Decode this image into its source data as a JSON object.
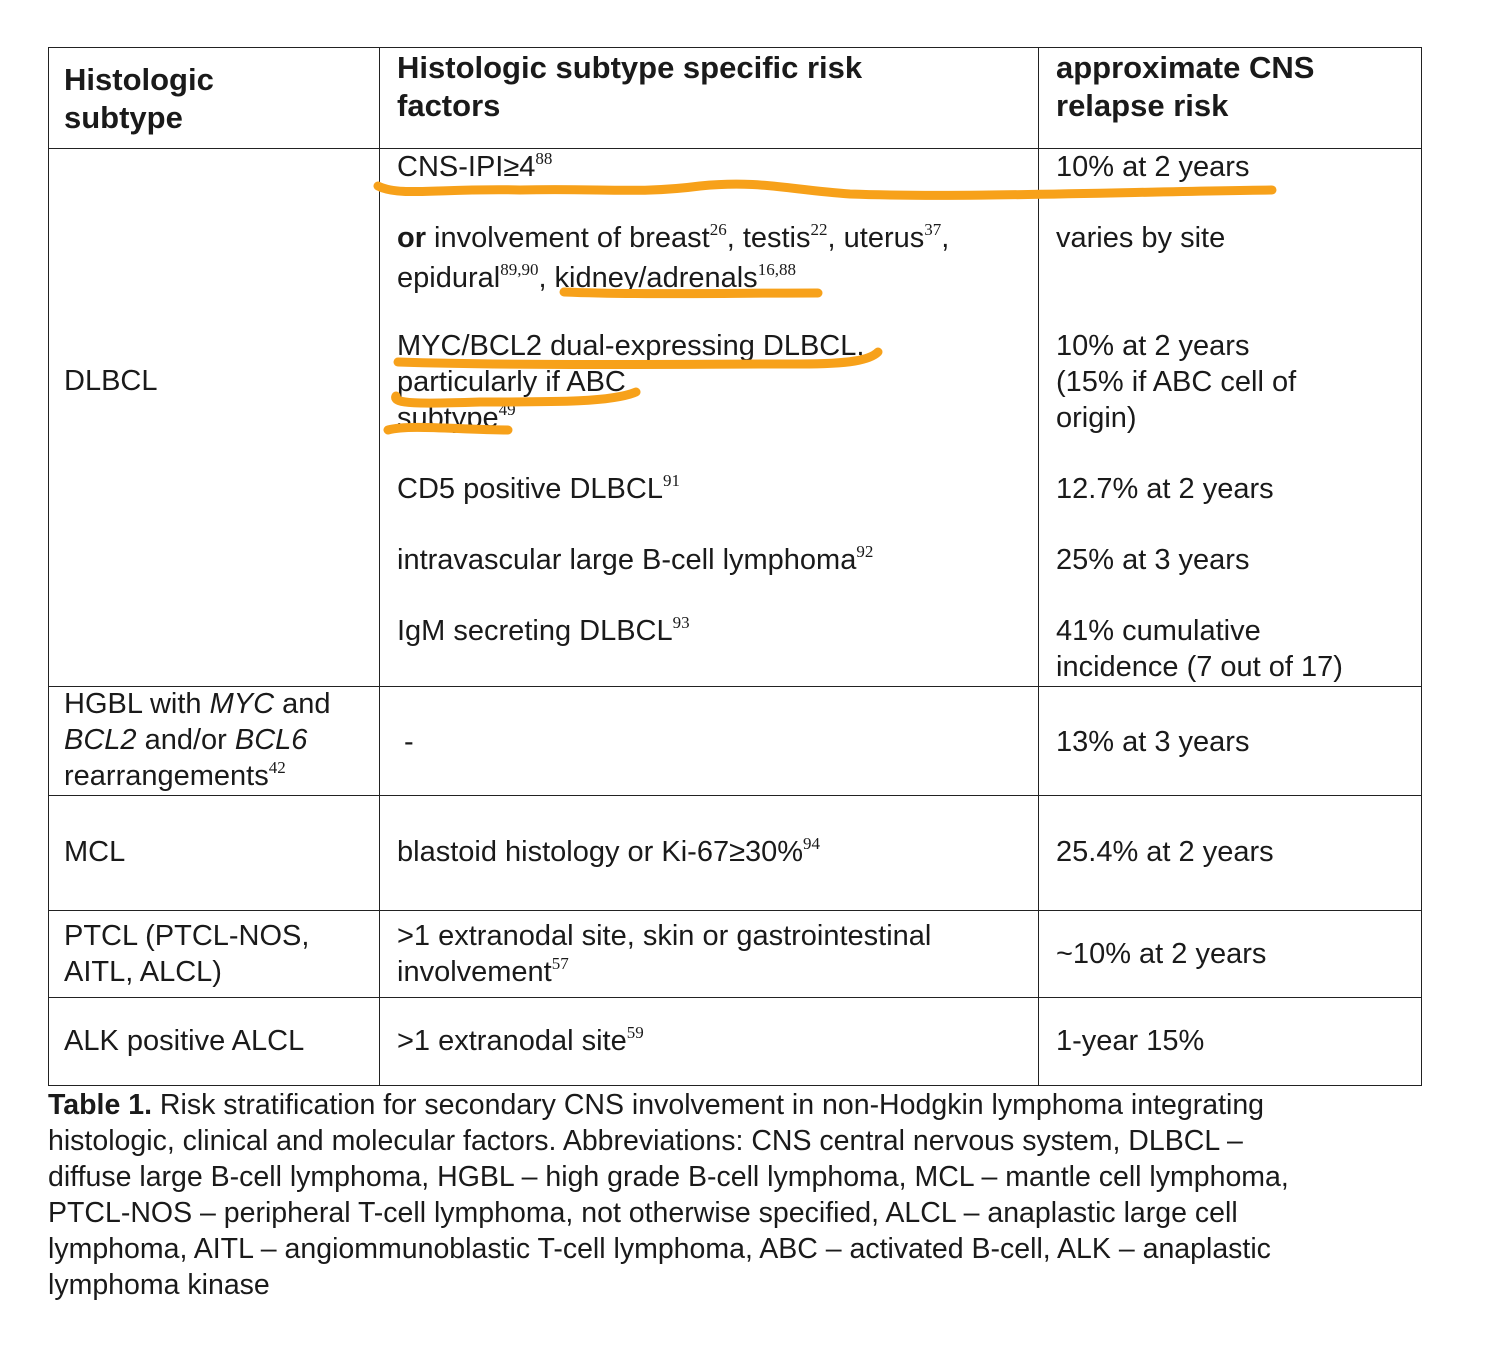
{
  "table": {
    "headers": {
      "col1": [
        "Histologic",
        "subtype"
      ],
      "col2": [
        "Histologic subtype specific risk",
        "factors"
      ],
      "col3": [
        "approximate CNS",
        "relapse risk"
      ]
    },
    "dlbcl": {
      "subtype": "DLBCL",
      "r1": {
        "factor": "CNS-IPI≥4",
        "ref": "88",
        "risk": "10% at 2 years"
      },
      "r2": {
        "or": "or",
        "f1": " involvement of breast",
        "s1": "26",
        "f2": ", testis",
        "s2": "22",
        "f3": ", uterus",
        "s3": "37",
        "f4": ",",
        "f5": "epidural",
        "s5": "89,90",
        "f6": ", kidney/adrenals",
        "s6": "16,88",
        "risk": "varies by site"
      },
      "r3": {
        "f1": "MYC/BCL2 dual-expressing DLBCL,",
        "f2": "particularly if ABC",
        "f3": "subtype",
        "s3": "49",
        "risk1": "10% at 2 years",
        "risk2": "(15% if ABC cell of",
        "risk3": "origin)"
      },
      "r4": {
        "factor": "CD5 positive DLBCL",
        "ref": "91",
        "risk": "12.7% at 2 years"
      },
      "r5": {
        "factor": "intravascular large B-cell lymphoma",
        "ref": "92",
        "risk": "25% at 3 years"
      },
      "r6": {
        "factor": "IgM secreting DLBCL",
        "ref": "93",
        "risk1": "41% cumulative",
        "risk2": "incidence (7 out of 17)"
      }
    },
    "hgbl": {
      "l1a": "HGBL with ",
      "l1b": "MYC",
      "l1c": " and",
      "l2a": "BCL2",
      "l2b": " and/or ",
      "l2c": "BCL6",
      "l3": "rearrangements",
      "ref": "42",
      "factor": "-",
      "risk": "13% at 3 years"
    },
    "mcl": {
      "subtype": "MCL",
      "factor": "blastoid histology or Ki-67≥30%",
      "ref": "94",
      "risk": "25.4% at 2 years"
    },
    "ptcl": {
      "subtype1": "PTCL (PTCL-NOS,",
      "subtype2": "AITL, ALCL)",
      "factor1": ">1 extranodal site, skin or gastrointestinal",
      "factor2": "involvement",
      "ref": "57",
      "risk": "~10% at 2 years"
    },
    "alk": {
      "subtype": "ALK positive ALCL",
      "factor": ">1  extranodal site",
      "ref": "59",
      "risk": "1-year 15%"
    }
  },
  "caption": {
    "label": "Table 1.",
    "l1": " Risk stratification for secondary CNS involvement in non-Hodgkin lymphoma integrating",
    "l2": "histologic, clinical and molecular factors. Abbreviations: CNS central nervous system, DLBCL –",
    "l3": "diffuse large B-cell lymphoma, HGBL – high grade B-cell lymphoma, MCL – mantle cell lymphoma,",
    "l4": "PTCL-NOS – peripheral T-cell lymphoma, not otherwise specified, ALCL – anaplastic large cell",
    "l5": "lymphoma, AITL – angiommunoblastic T-cell lymphoma, ABC – activated B-cell,  ALK – anaplastic",
    "l6": "lymphoma  kinase"
  },
  "annotation_color": "#f7a11a"
}
